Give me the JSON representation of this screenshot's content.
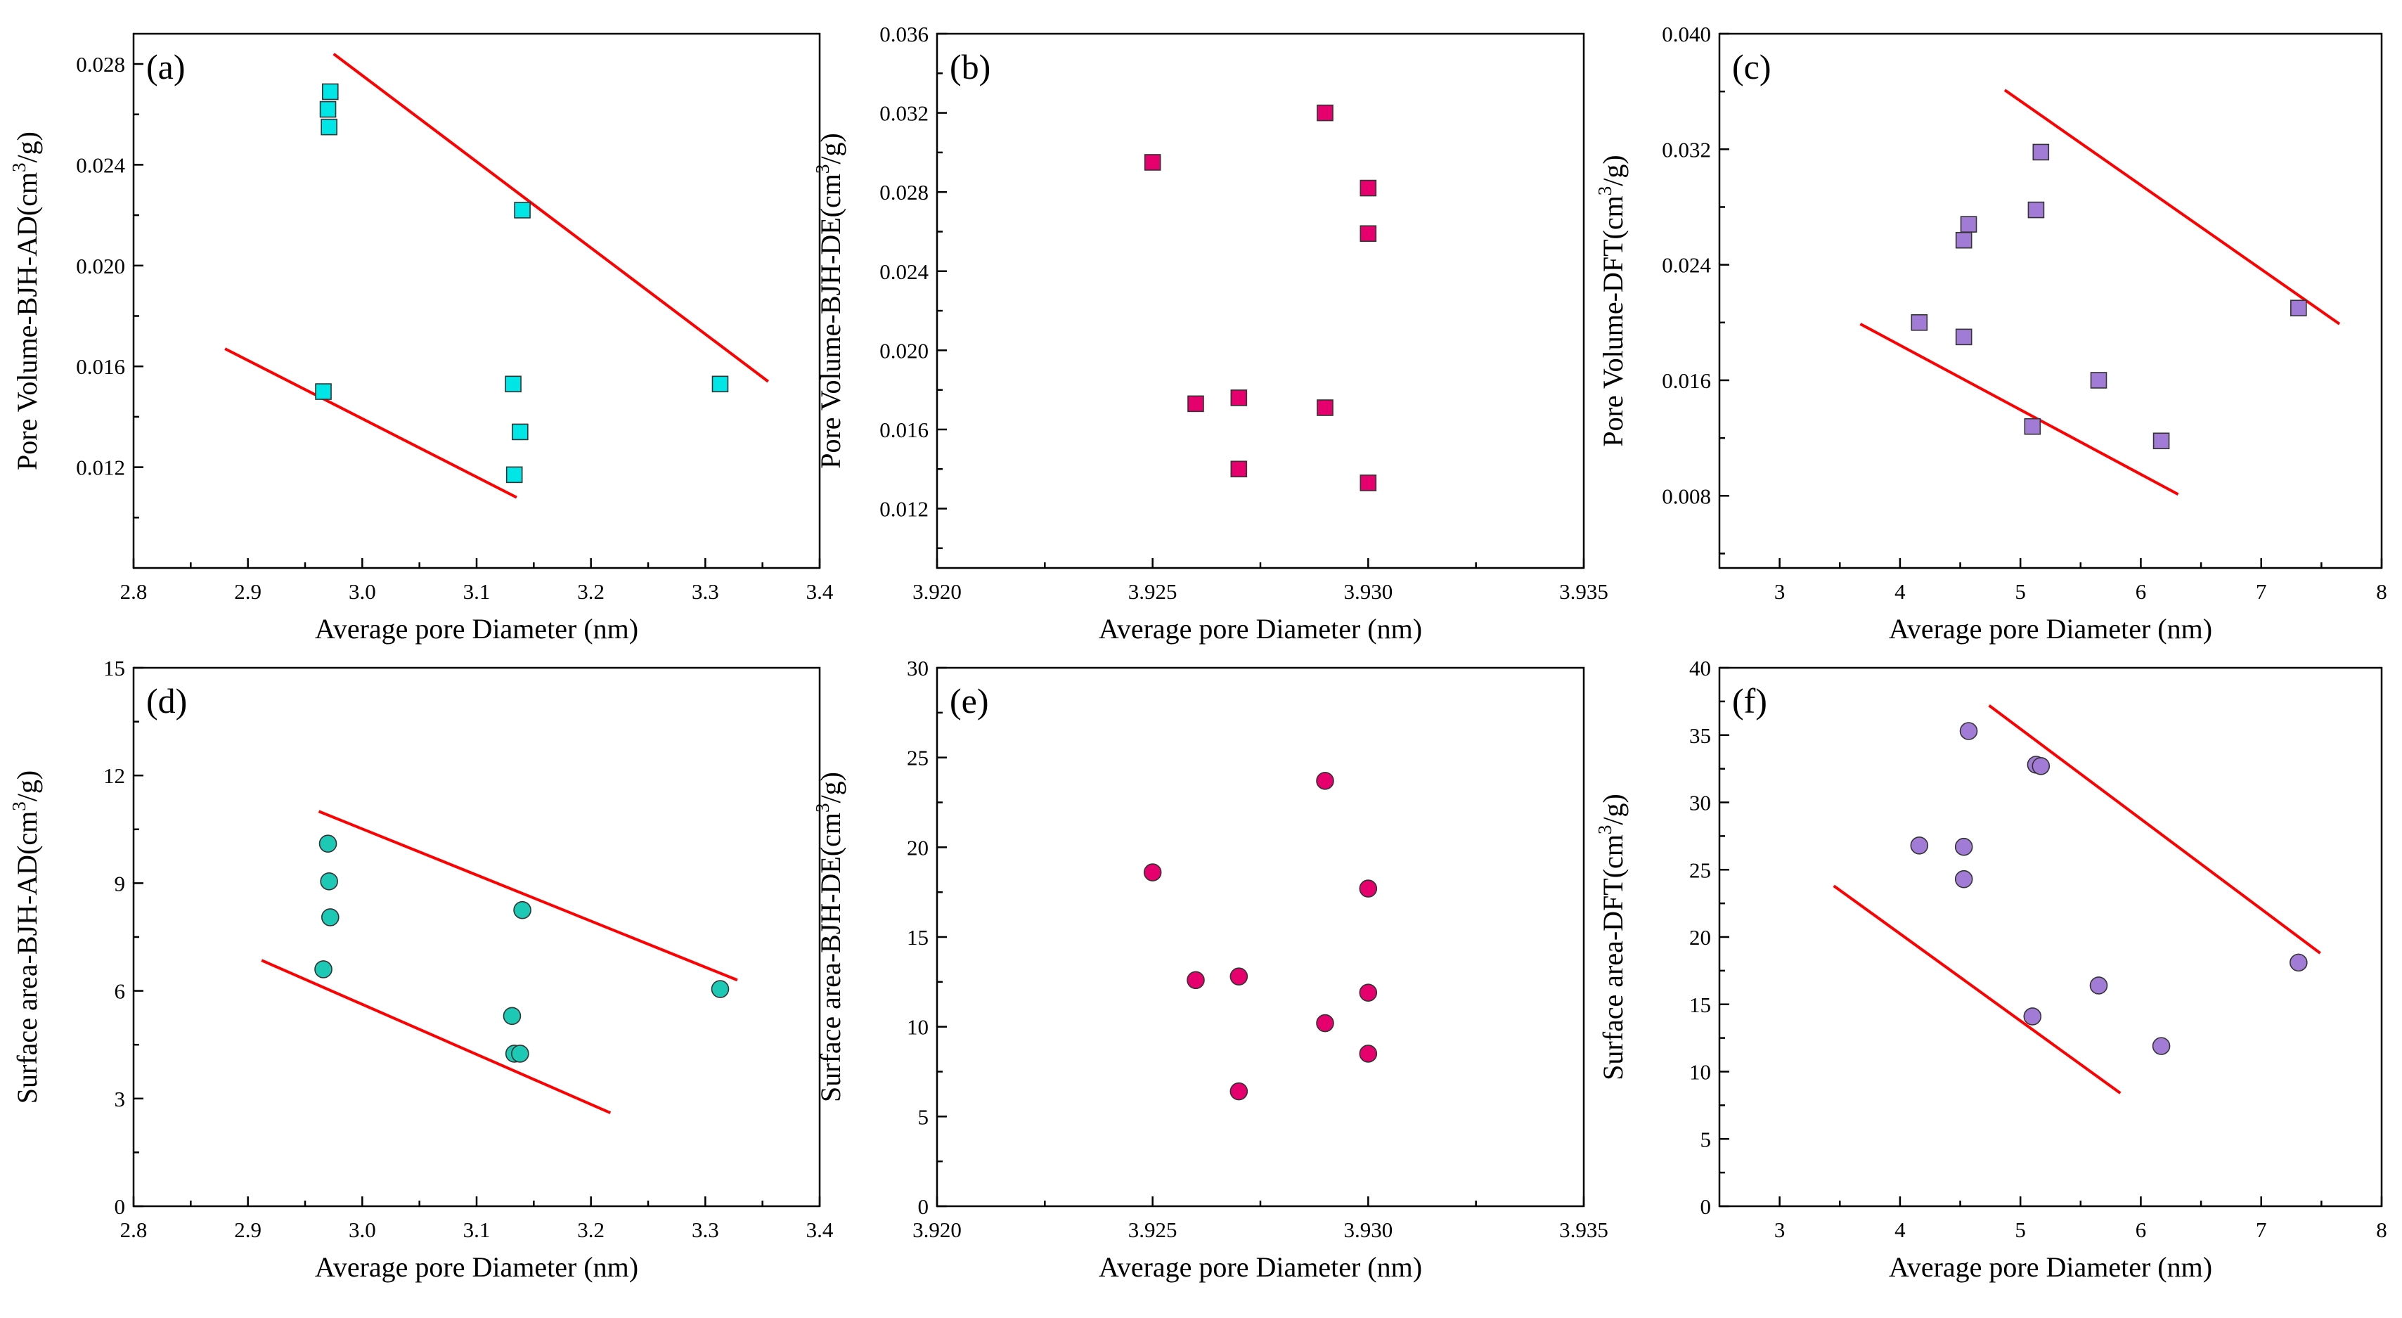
{
  "chart_data": [
    {
      "type": "scatter",
      "panel_label": "(a)",
      "xlabel": "Average pore Diameter (nm)",
      "ylabel": [
        "Pore Volume-BJH-AD(cm",
        "3",
        "/g)"
      ],
      "xlim": [
        2.8,
        3.4
      ],
      "ylim": [
        0.008,
        0.0292
      ],
      "xticks": [
        2.8,
        2.9,
        3.0,
        3.1,
        3.2,
        3.3,
        3.4
      ],
      "xtick_labels": [
        "2.8",
        "2.9",
        "3.0",
        "3.1",
        "3.2",
        "3.3",
        "3.4"
      ],
      "yticks": [
        0.012,
        0.016,
        0.02,
        0.024,
        0.028
      ],
      "ytick_labels": [
        "0.012",
        "0.016",
        "0.020",
        "0.024",
        "0.028"
      ],
      "marker": "square",
      "color": "#00e5e5",
      "x": [
        2.972,
        2.97,
        2.971,
        3.14,
        2.966,
        3.132,
        3.138,
        3.133,
        3.313
      ],
      "y": [
        0.0269,
        0.0262,
        0.0255,
        0.0222,
        0.015,
        0.0153,
        0.0134,
        0.0117,
        0.0153
      ],
      "trend_lines": [
        {
          "x": [
            2.975,
            3.355
          ],
          "y": [
            0.0284,
            0.0154
          ]
        },
        {
          "x": [
            2.88,
            3.135
          ],
          "y": [
            0.0167,
            0.0108
          ]
        }
      ]
    },
    {
      "type": "scatter",
      "panel_label": "(b)",
      "xlabel": "Average pore Diameter (nm)",
      "ylabel": [
        "Pore Volume-BJH-DE(cm",
        "3",
        "/g)"
      ],
      "xlim": [
        3.92,
        3.935
      ],
      "ylim": [
        0.009,
        0.036
      ],
      "xticks": [
        3.92,
        3.925,
        3.93,
        3.935
      ],
      "xtick_labels": [
        "3.920",
        "3.925",
        "3.930",
        "3.935"
      ],
      "yticks": [
        0.012,
        0.016,
        0.02,
        0.024,
        0.028,
        0.032,
        0.036
      ],
      "ytick_labels": [
        "0.012",
        "0.016",
        "0.020",
        "0.024",
        "0.028",
        "0.032",
        "0.036"
      ],
      "marker": "square",
      "color": "#e5006e",
      "x": [
        3.925,
        3.926,
        3.927,
        3.927,
        3.929,
        3.929,
        3.93,
        3.93,
        3.93
      ],
      "y": [
        0.0295,
        0.0173,
        0.0176,
        0.014,
        0.032,
        0.0171,
        0.0282,
        0.0259,
        0.0133
      ],
      "trend_lines": []
    },
    {
      "type": "scatter",
      "panel_label": "(c)",
      "xlabel": "Average pore Diameter (nm)",
      "ylabel": [
        "Pore Volume-DFT(cm",
        "3",
        "/g)"
      ],
      "xlim": [
        2.5,
        8
      ],
      "ylim": [
        0.003,
        0.04
      ],
      "xticks": [
        3,
        4,
        5,
        6,
        7,
        8
      ],
      "xtick_labels": [
        "3",
        "4",
        "5",
        "6",
        "7",
        "8"
      ],
      "yticks": [
        0.008,
        0.016,
        0.024,
        0.032,
        0.04
      ],
      "ytick_labels": [
        "0.008",
        "0.016",
        "0.024",
        "0.032",
        "0.040"
      ],
      "marker": "square",
      "color": "#a27bd6",
      "x": [
        4.16,
        4.53,
        4.53,
        4.57,
        5.1,
        5.13,
        5.17,
        5.65,
        6.17,
        7.31
      ],
      "y": [
        0.02,
        0.019,
        0.0257,
        0.0268,
        0.0128,
        0.0278,
        0.0318,
        0.016,
        0.0118,
        0.021
      ],
      "trend_lines": [
        {
          "x": [
            4.87,
            7.65
          ],
          "y": [
            0.0361,
            0.0199
          ]
        },
        {
          "x": [
            3.67,
            6.31
          ],
          "y": [
            0.0199,
            0.0081
          ]
        }
      ]
    },
    {
      "type": "scatter",
      "panel_label": "(d)",
      "xlabel": "Average pore Diameter (nm)",
      "ylabel": [
        "Surface area-BJH-AD(cm",
        "3",
        "/g)"
      ],
      "xlim": [
        2.8,
        3.4
      ],
      "ylim": [
        0,
        15
      ],
      "xticks": [
        2.8,
        2.9,
        3.0,
        3.1,
        3.2,
        3.3,
        3.4
      ],
      "xtick_labels": [
        "2.8",
        "2.9",
        "3.0",
        "3.1",
        "3.2",
        "3.3",
        "3.4"
      ],
      "yticks": [
        0,
        3,
        6,
        9,
        12,
        15
      ],
      "ytick_labels": [
        "0",
        "3",
        "6",
        "9",
        "12",
        "15"
      ],
      "marker": "circle",
      "color": "#1dc8b4",
      "x": [
        2.97,
        2.971,
        2.972,
        2.966,
        3.14,
        3.131,
        3.133,
        3.138,
        3.313
      ],
      "y": [
        10.1,
        9.05,
        8.05,
        6.6,
        8.25,
        5.3,
        4.25,
        4.25,
        6.05
      ],
      "trend_lines": [
        {
          "x": [
            2.962,
            3.328
          ],
          "y": [
            11.0,
            6.3
          ]
        },
        {
          "x": [
            2.912,
            3.217
          ],
          "y": [
            6.85,
            2.6
          ]
        }
      ]
    },
    {
      "type": "scatter",
      "panel_label": "(e)",
      "xlabel": "Average pore Diameter (nm)",
      "ylabel": [
        "Surface area-BJH-DE(cm",
        "3",
        "/g)"
      ],
      "xlim": [
        3.92,
        3.935
      ],
      "ylim": [
        0,
        30
      ],
      "xticks": [
        3.92,
        3.925,
        3.93,
        3.935
      ],
      "xtick_labels": [
        "3.920",
        "3.925",
        "3.930",
        "3.935"
      ],
      "yticks": [
        0,
        5,
        10,
        15,
        20,
        25,
        30
      ],
      "ytick_labels": [
        "0",
        "5",
        "10",
        "15",
        "20",
        "25",
        "30"
      ],
      "marker": "circle",
      "color": "#e5006e",
      "x": [
        3.925,
        3.926,
        3.927,
        3.927,
        3.929,
        3.929,
        3.93,
        3.93,
        3.93
      ],
      "y": [
        18.6,
        12.6,
        12.8,
        6.4,
        23.7,
        10.2,
        17.7,
        11.9,
        8.5
      ],
      "trend_lines": []
    },
    {
      "type": "scatter",
      "panel_label": "(f)",
      "xlabel": "Average pore Diameter (nm)",
      "ylabel": [
        "Surface area-DFT(cm",
        "3",
        "/g)"
      ],
      "xlim": [
        2.5,
        8
      ],
      "ylim": [
        0,
        40
      ],
      "xticks": [
        3,
        4,
        5,
        6,
        7,
        8
      ],
      "xtick_labels": [
        "3",
        "4",
        "5",
        "6",
        "7",
        "8"
      ],
      "yticks": [
        0,
        5,
        10,
        15,
        20,
        25,
        30,
        35,
        40
      ],
      "ytick_labels": [
        "0",
        "5",
        "10",
        "15",
        "20",
        "25",
        "30",
        "35",
        "40"
      ],
      "marker": "circle",
      "color": "#a27bd6",
      "x": [
        4.16,
        4.53,
        4.53,
        4.57,
        5.1,
        5.13,
        5.17,
        5.65,
        6.17,
        7.31
      ],
      "y": [
        26.8,
        24.3,
        26.7,
        35.3,
        14.1,
        32.8,
        32.7,
        16.4,
        11.9,
        18.1
      ],
      "trend_lines": [
        {
          "x": [
            4.74,
            7.49
          ],
          "y": [
            37.2,
            18.8
          ]
        },
        {
          "x": [
            3.45,
            5.83
          ],
          "y": [
            23.8,
            8.4
          ]
        }
      ]
    }
  ]
}
